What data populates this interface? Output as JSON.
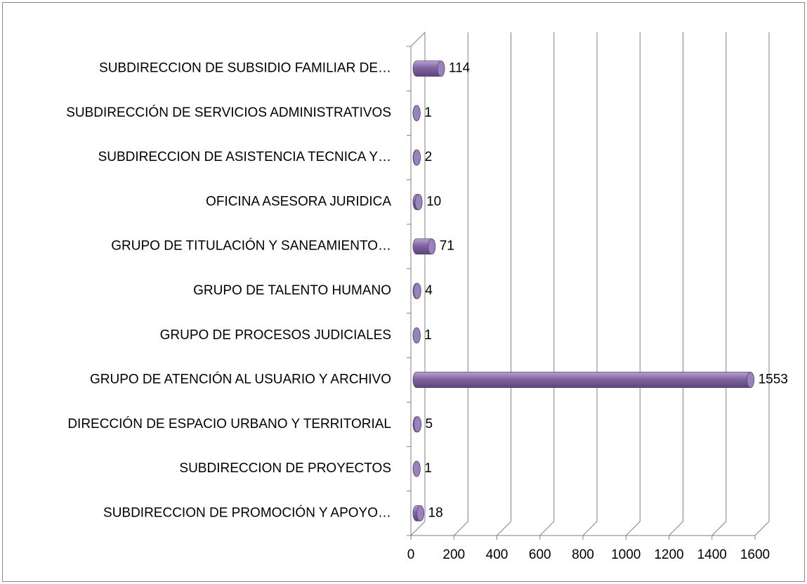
{
  "chart_data": {
    "type": "bar",
    "orientation": "horizontal",
    "3d": true,
    "categories": [
      "SUBDIRECCION DE SUBSIDIO FAMILIAR DE…",
      "SUBDIRECCIÓN DE SERVICIOS ADMINISTRATIVOS",
      "SUBDIRECCION DE ASISTENCIA TECNICA Y…",
      "OFICINA ASESORA JURIDICA",
      "GRUPO DE TITULACIÓN Y SANEAMIENTO…",
      "GRUPO DE TALENTO HUMANO",
      "GRUPO DE PROCESOS JUDICIALES",
      "GRUPO DE ATENCIÓN AL USUARIO Y ARCHIVO",
      "DIRECCIÓN DE ESPACIO URBANO Y TERRITORIAL",
      "SUBDIRECCION DE PROYECTOS",
      "SUBDIRECCION DE PROMOCIÓN Y APOYO…"
    ],
    "values": [
      114,
      1,
      2,
      10,
      71,
      4,
      1,
      1553,
      5,
      1,
      18
    ],
    "color": "#8064a2",
    "xlim": [
      0,
      1600
    ],
    "xticks": [
      0,
      200,
      400,
      600,
      800,
      1000,
      1200,
      1400,
      1600
    ],
    "grid": true
  }
}
